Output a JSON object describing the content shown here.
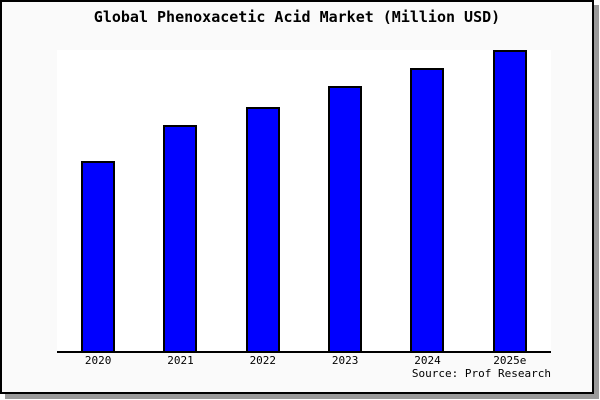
{
  "window": {
    "page_background": "#ffffff",
    "frame_background": "#fafafa",
    "frame_border_color": "#000000",
    "frame_shadow_color": "#9a9a9a"
  },
  "chart_data": {
    "type": "bar",
    "title": "Global Phenoxacetic Acid Market (Million USD)",
    "categories": [
      "2020",
      "2021",
      "2022",
      "2023",
      "2024",
      "2025e"
    ],
    "values": [
      63,
      75,
      81,
      88,
      94,
      100
    ],
    "ylim": [
      0,
      100
    ],
    "xlabel": "",
    "ylabel": "",
    "y_axis_labels_visible": false,
    "grid": false,
    "legend": false,
    "bar_color": "#0000ff",
    "bar_border_color": "#000000",
    "plot_background": "#ffffff",
    "axis_line_color": "#000000",
    "source": "Source: Prof Research"
  }
}
